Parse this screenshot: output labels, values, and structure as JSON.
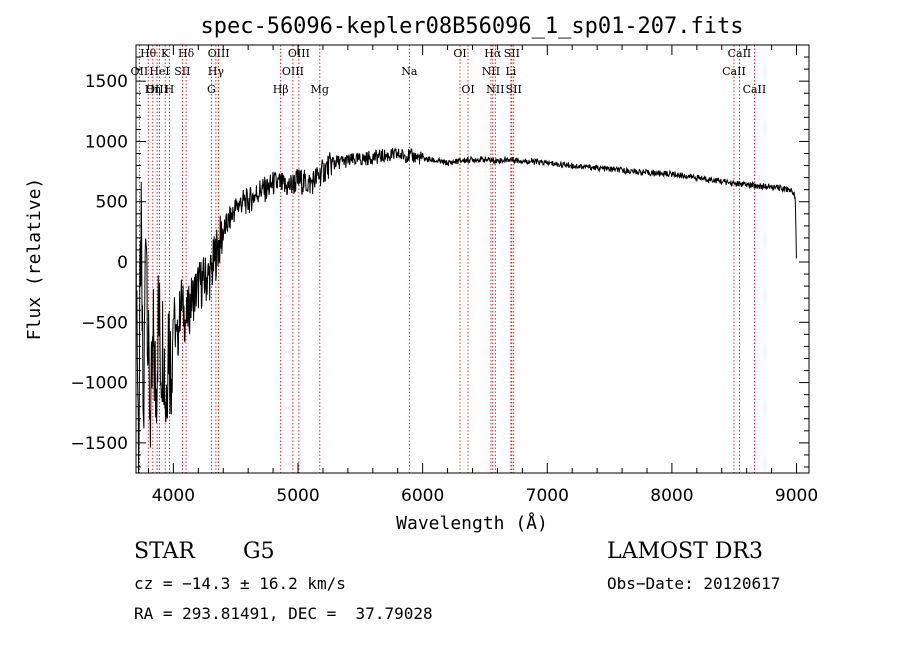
{
  "chart_data": {
    "type": "line",
    "title": "spec-56096-kepler08B56096_1_sp01-207.fits",
    "xlabel": "Wavelength (Å)",
    "ylabel": "Flux (relative)",
    "xlim": [
      3700,
      9100
    ],
    "ylim": [
      -1750,
      1800
    ],
    "xticks": [
      4000,
      5000,
      6000,
      7000,
      8000,
      9000
    ],
    "yticks": [
      -1500,
      -1000,
      -500,
      0,
      500,
      1000,
      1500
    ],
    "grid": false,
    "series": [
      {
        "name": "flux",
        "x": [
          3700,
          3720,
          3740,
          3760,
          3780,
          3800,
          3820,
          3840,
          3860,
          3880,
          3900,
          3920,
          3940,
          3960,
          3980,
          4000,
          4030,
          4060,
          4100,
          4150,
          4200,
          4250,
          4300,
          4350,
          4400,
          4450,
          4500,
          4550,
          4600,
          4650,
          4700,
          4750,
          4800,
          4850,
          4900,
          4950,
          5000,
          5050,
          5100,
          5150,
          5200,
          5250,
          5300,
          5350,
          5400,
          5500,
          5600,
          5700,
          5800,
          5900,
          6000,
          6100,
          6200,
          6300,
          6400,
          6500,
          6600,
          6700,
          6800,
          6900,
          7000,
          7200,
          7400,
          7600,
          7800,
          8000,
          8200,
          8400,
          8500,
          8600,
          8700,
          8800,
          8900,
          8950,
          8990,
          9000
        ],
        "y": [
          400,
          -1600,
          300,
          -1500,
          600,
          -900,
          -1300,
          -700,
          -1100,
          -400,
          -800,
          -600,
          -1200,
          -500,
          -900,
          -400,
          -700,
          -300,
          -500,
          -300,
          -200,
          -150,
          -100,
          100,
          250,
          350,
          450,
          500,
          500,
          550,
          600,
          600,
          650,
          650,
          620,
          640,
          680,
          660,
          650,
          700,
          750,
          800,
          830,
          830,
          840,
          850,
          870,
          880,
          890,
          880,
          860,
          840,
          820,
          840,
          850,
          850,
          840,
          850,
          840,
          830,
          820,
          800,
          780,
          760,
          740,
          730,
          700,
          670,
          650,
          640,
          630,
          620,
          610,
          600,
          550,
          0
        ]
      }
    ],
    "lines": [
      {
        "label": "Hθ",
        "x": 3798
      },
      {
        "label": "OII",
        "x": 3727
      },
      {
        "label": "OIII",
        "x": 3869
      },
      {
        "label": "K",
        "x": 3934
      },
      {
        "label": "H",
        "x": 3968
      },
      {
        "label": "HeI",
        "x": 3889
      },
      {
        "label": "Hη",
        "x": 3835
      },
      {
        "label": "SII",
        "x": 4072
      },
      {
        "label": "Hδ",
        "x": 4102
      },
      {
        "label": "OIII",
        "x": 4363
      },
      {
        "label": "Hγ",
        "x": 4341
      },
      {
        "label": "G",
        "x": 4305
      },
      {
        "label": "OIII",
        "x": 5007
      },
      {
        "label": "OIII",
        "x": 4959
      },
      {
        "label": "Hβ",
        "x": 4861
      },
      {
        "label": "Mg",
        "x": 5175
      },
      {
        "label": "Na",
        "x": 5893
      },
      {
        "label": "OI",
        "x": 6300
      },
      {
        "label": "OI",
        "x": 6364
      },
      {
        "label": "Hα",
        "x": 6563
      },
      {
        "label": "NII",
        "x": 6548
      },
      {
        "label": "NII",
        "x": 6583
      },
      {
        "label": "SII",
        "x": 6716
      },
      {
        "label": "Li",
        "x": 6708
      },
      {
        "label": "SII",
        "x": 6731
      },
      {
        "label": "CaII",
        "x": 8542
      },
      {
        "label": "CaII",
        "x": 8498
      },
      {
        "label": "CaII",
        "x": 8662
      }
    ]
  },
  "info": {
    "class": "STAR",
    "subclass": "G5",
    "survey": "LAMOST DR3",
    "cz": "cz = −14.3 ± 16.2 km/s",
    "obs_date": "Obs−Date: 20120617",
    "coords": "RA = 293.81491, DEC =  37.79028"
  }
}
